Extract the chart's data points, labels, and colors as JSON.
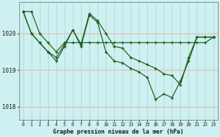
{
  "title": "Graphe pression niveau de la mer (hPa)",
  "bg_color": "#cef0f0",
  "grid_h_color": "#f0b0b0",
  "grid_v_color": "#b0dede",
  "line_color": "#1a5c1a",
  "xlim": [
    -0.5,
    23.5
  ],
  "ylim": [
    1017.65,
    1020.85
  ],
  "yticks": [
    1018,
    1019,
    1020
  ],
  "xticks": [
    0,
    1,
    2,
    3,
    4,
    5,
    6,
    7,
    8,
    9,
    10,
    11,
    12,
    13,
    14,
    15,
    16,
    17,
    18,
    19,
    20,
    21,
    22,
    23
  ],
  "series1_x": [
    0,
    1,
    2,
    3,
    4,
    5,
    6,
    7,
    8,
    9,
    10,
    11,
    12,
    13,
    14,
    15,
    16,
    17,
    18,
    19,
    20,
    21,
    22,
    23
  ],
  "series1_y": [
    1020.6,
    1020.6,
    1020.0,
    1019.75,
    1019.5,
    1019.75,
    1019.75,
    1019.75,
    1019.75,
    1019.75,
    1019.75,
    1019.75,
    1019.75,
    1019.75,
    1019.75,
    1019.75,
    1019.75,
    1019.75,
    1019.75,
    1019.75,
    1019.75,
    1019.75,
    1019.75,
    1019.9
  ],
  "series2_x": [
    0,
    1,
    2,
    3,
    4,
    5,
    6,
    7,
    8,
    9,
    10,
    11,
    12,
    13,
    14,
    15,
    16,
    17,
    18,
    19,
    20,
    21,
    22,
    23
  ],
  "series2_y": [
    1020.6,
    1020.0,
    1019.75,
    1019.5,
    1019.35,
    1019.7,
    1020.1,
    1019.7,
    1020.55,
    1020.35,
    1020.0,
    1019.65,
    1019.6,
    1019.35,
    1019.25,
    1019.15,
    1019.05,
    1018.9,
    1018.85,
    1018.6,
    1019.35,
    1019.9,
    1019.9,
    1019.9
  ],
  "series3_x": [
    0,
    1,
    2,
    3,
    4,
    5,
    6,
    7,
    8,
    9,
    10,
    11,
    12,
    13,
    14,
    15,
    16,
    17,
    18,
    19,
    20,
    21,
    22,
    23
  ],
  "series3_y": [
    1020.6,
    1020.0,
    1019.75,
    1019.5,
    1019.25,
    1019.65,
    1020.1,
    1019.65,
    1020.5,
    1020.3,
    1019.5,
    1019.25,
    1019.2,
    1019.05,
    1018.95,
    1018.8,
    1018.2,
    1018.35,
    1018.25,
    1018.7,
    1019.25,
    1019.9,
    1019.9,
    1019.9
  ]
}
